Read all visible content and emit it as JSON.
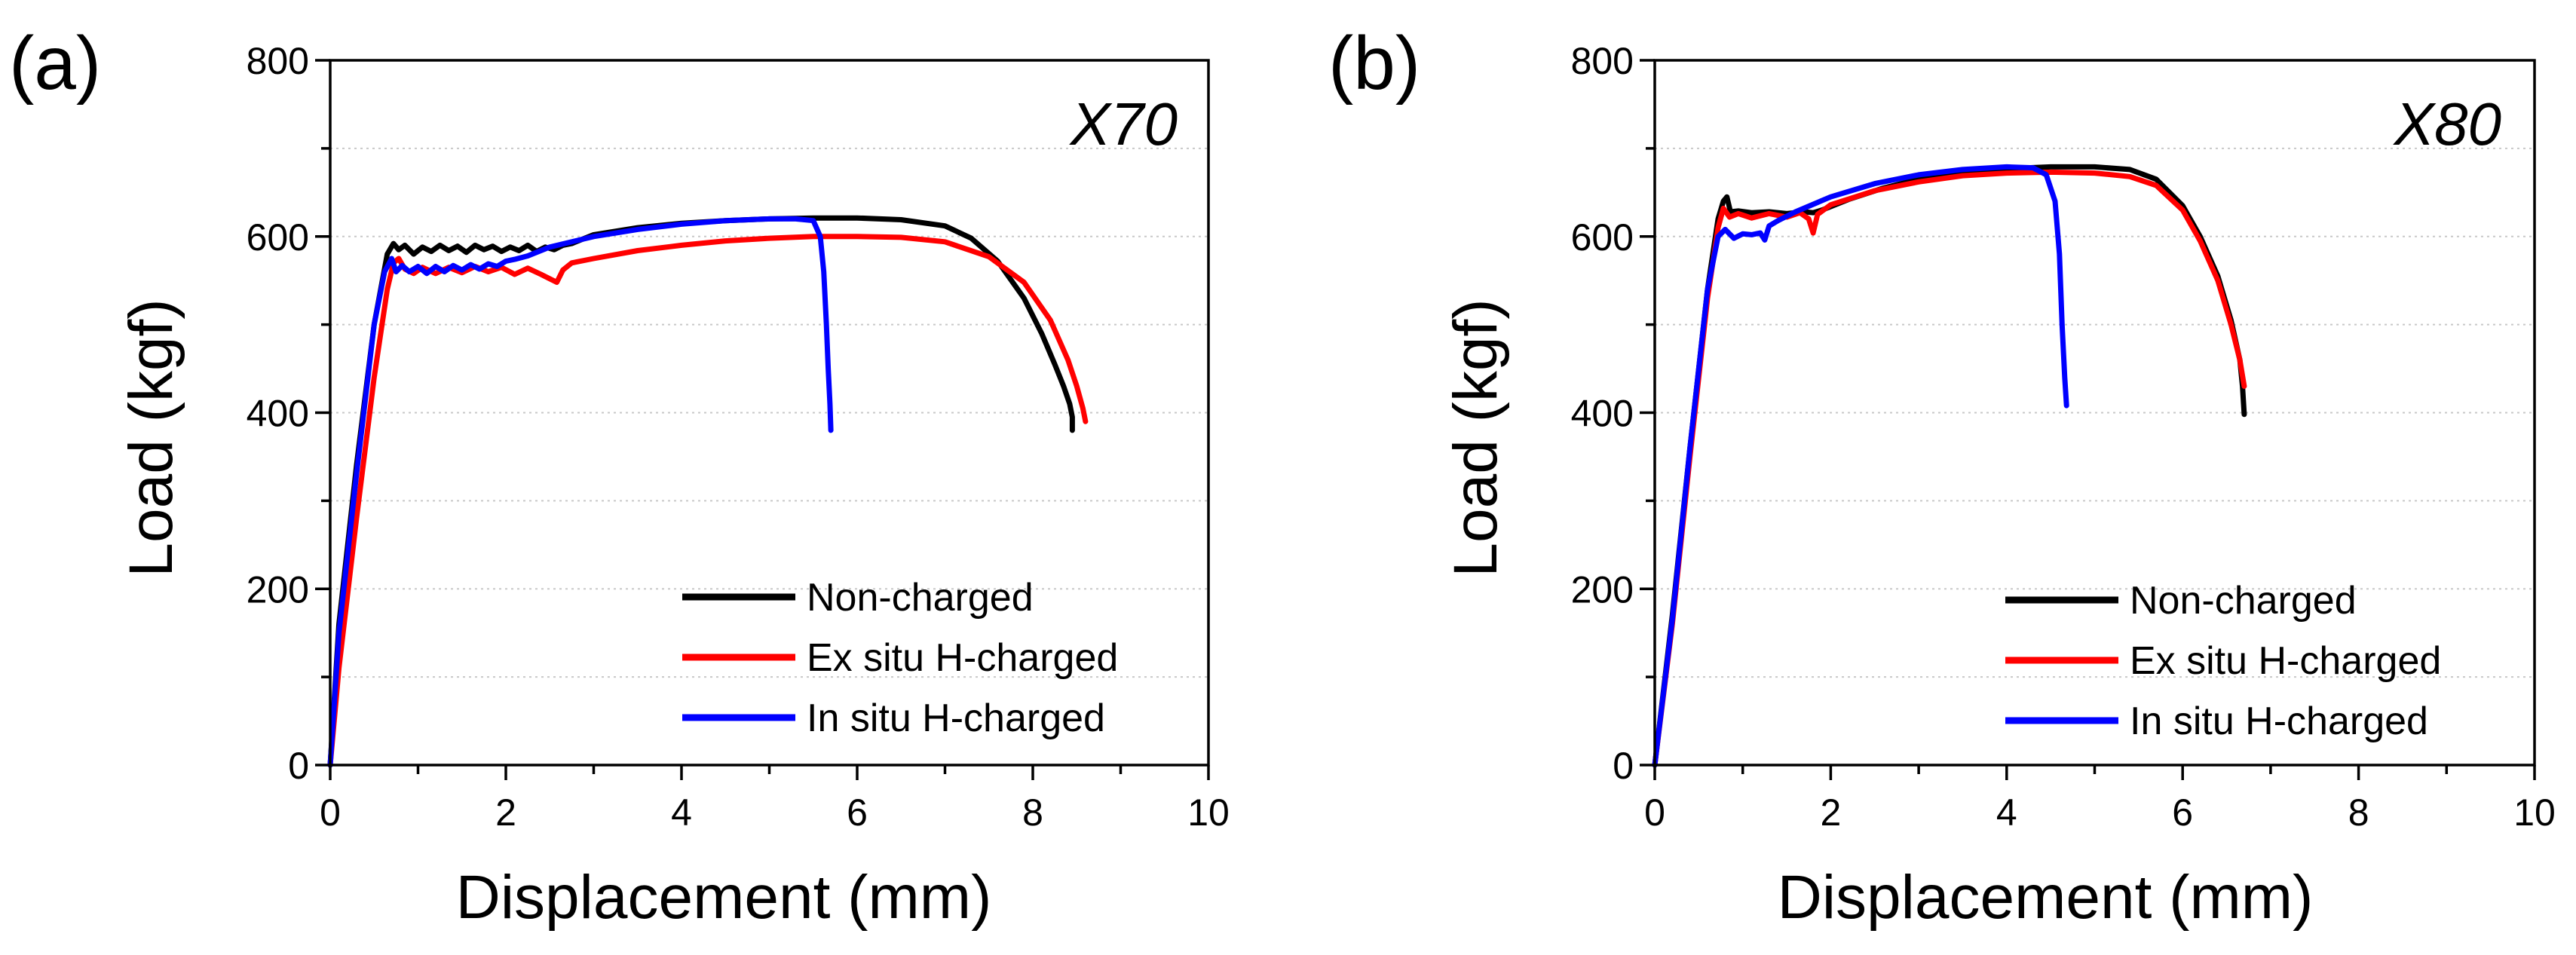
{
  "chart_data": [
    {
      "type": "line",
      "panel_label": "(a)",
      "steel_label": "X70",
      "xlabel": "Displacement (mm)",
      "ylabel": "Load (kgf)",
      "xlim": [
        0,
        10
      ],
      "ylim": [
        0,
        800
      ],
      "xticks": [
        "0",
        "2",
        "4",
        "6",
        "8",
        "10"
      ],
      "yticks": [
        "0",
        "200",
        "400",
        "600",
        "800"
      ],
      "grid": "horizontal-dotted",
      "legend_position": "bottom-right",
      "series": [
        {
          "name": "Non-charged",
          "color": "#000000",
          "x": [
            0,
            0.1,
            0.3,
            0.5,
            0.65,
            0.72,
            0.78,
            0.85,
            0.95,
            1.05,
            1.15,
            1.25,
            1.35,
            1.45,
            1.55,
            1.65,
            1.75,
            1.85,
            1.95,
            2.05,
            2.15,
            2.25,
            2.35,
            2.45,
            2.55,
            2.65,
            2.75,
            2.85,
            3.0,
            3.5,
            4.0,
            4.5,
            5.0,
            5.5,
            6.0,
            6.5,
            7.0,
            7.3,
            7.6,
            7.9,
            8.1,
            8.25,
            8.35,
            8.42,
            8.45,
            8.45
          ],
          "y": [
            0,
            160,
            340,
            500,
            580,
            592,
            585,
            590,
            580,
            588,
            583,
            590,
            584,
            589,
            582,
            590,
            585,
            589,
            583,
            588,
            584,
            590,
            583,
            588,
            585,
            590,
            592,
            596,
            602,
            610,
            615,
            618,
            620,
            621,
            621,
            619,
            612,
            598,
            572,
            530,
            490,
            455,
            430,
            410,
            395,
            380
          ]
        },
        {
          "name": "Ex situ H-charged",
          "color": "#ff0000",
          "x": [
            0,
            0.1,
            0.3,
            0.5,
            0.65,
            0.72,
            0.78,
            0.85,
            0.95,
            1.05,
            1.2,
            1.35,
            1.5,
            1.65,
            1.8,
            1.95,
            2.1,
            2.25,
            2.4,
            2.5,
            2.58,
            2.65,
            2.75,
            3.0,
            3.5,
            4.0,
            4.5,
            5.0,
            5.5,
            6.0,
            6.5,
            7.0,
            7.5,
            7.9,
            8.2,
            8.4,
            8.5,
            8.57,
            8.6
          ],
          "y": [
            0,
            110,
            280,
            440,
            540,
            570,
            575,
            563,
            558,
            565,
            558,
            565,
            559,
            566,
            560,
            565,
            557,
            564,
            557,
            552,
            548,
            562,
            570,
            575,
            584,
            590,
            595,
            598,
            600,
            600,
            599,
            594,
            577,
            548,
            505,
            460,
            430,
            405,
            390
          ]
        },
        {
          "name": "In situ H-charged",
          "color": "#0000ff",
          "x": [
            0,
            0.1,
            0.3,
            0.5,
            0.62,
            0.7,
            0.75,
            0.82,
            0.9,
            1.0,
            1.1,
            1.2,
            1.3,
            1.4,
            1.5,
            1.6,
            1.7,
            1.8,
            1.9,
            2.0,
            2.1,
            2.25,
            2.5,
            3.0,
            3.5,
            4.0,
            4.5,
            5.0,
            5.3,
            5.5,
            5.58,
            5.62,
            5.65,
            5.67,
            5.69,
            5.7
          ],
          "y": [
            0,
            150,
            330,
            500,
            560,
            575,
            560,
            567,
            560,
            566,
            558,
            566,
            560,
            567,
            562,
            568,
            563,
            569,
            566,
            572,
            574,
            578,
            588,
            600,
            608,
            614,
            618,
            620,
            620,
            618,
            600,
            560,
            500,
            450,
            410,
            380
          ]
        }
      ]
    },
    {
      "type": "line",
      "panel_label": "(b)",
      "steel_label": "X80",
      "xlabel": "Displacement (mm)",
      "ylabel": "Load (kgf)",
      "xlim": [
        0,
        10
      ],
      "ylim": [
        0,
        800
      ],
      "xticks": [
        "0",
        "2",
        "4",
        "6",
        "8",
        "10"
      ],
      "yticks": [
        "0",
        "200",
        "400",
        "600",
        "800"
      ],
      "grid": "horizontal-dotted",
      "legend_position": "bottom-right",
      "series": [
        {
          "name": "Non-charged",
          "color": "#000000",
          "x": [
            0,
            0.2,
            0.4,
            0.6,
            0.72,
            0.78,
            0.82,
            0.86,
            0.95,
            1.1,
            1.3,
            1.5,
            1.7,
            1.8,
            1.9,
            2.2,
            2.6,
            3.0,
            3.5,
            4.0,
            4.5,
            5.0,
            5.4,
            5.7,
            6.0,
            6.2,
            6.4,
            6.55,
            6.65,
            6.68,
            6.7
          ],
          "y": [
            0,
            170,
            360,
            540,
            620,
            640,
            645,
            628,
            629,
            627,
            628,
            626,
            628,
            627,
            630,
            642,
            655,
            665,
            673,
            677,
            679,
            679,
            676,
            665,
            635,
            600,
            555,
            505,
            460,
            430,
            398
          ]
        },
        {
          "name": "Ex situ H-charged",
          "color": "#ff0000",
          "x": [
            0,
            0.2,
            0.4,
            0.6,
            0.72,
            0.78,
            0.85,
            0.95,
            1.1,
            1.3,
            1.5,
            1.65,
            1.75,
            1.8,
            1.85,
            2.0,
            2.5,
            3.0,
            3.5,
            4.0,
            4.5,
            5.0,
            5.4,
            5.7,
            6.0,
            6.2,
            6.4,
            6.55,
            6.65,
            6.7
          ],
          "y": [
            0,
            160,
            350,
            530,
            610,
            632,
            622,
            626,
            621,
            626,
            622,
            627,
            620,
            604,
            625,
            636,
            652,
            662,
            669,
            672,
            673,
            672,
            668,
            658,
            630,
            595,
            550,
            500,
            460,
            430
          ]
        },
        {
          "name": "In situ H-charged",
          "color": "#0000ff",
          "x": [
            0,
            0.2,
            0.4,
            0.6,
            0.72,
            0.8,
            0.9,
            1.0,
            1.1,
            1.2,
            1.25,
            1.3,
            1.4,
            1.6,
            2.0,
            2.5,
            3.0,
            3.5,
            4.0,
            4.3,
            4.45,
            4.55,
            4.6,
            4.63,
            4.66,
            4.68
          ],
          "y": [
            0,
            165,
            360,
            540,
            600,
            608,
            598,
            603,
            602,
            604,
            596,
            612,
            618,
            628,
            645,
            660,
            670,
            676,
            679,
            678,
            670,
            640,
            580,
            500,
            440,
            408
          ]
        }
      ]
    }
  ]
}
